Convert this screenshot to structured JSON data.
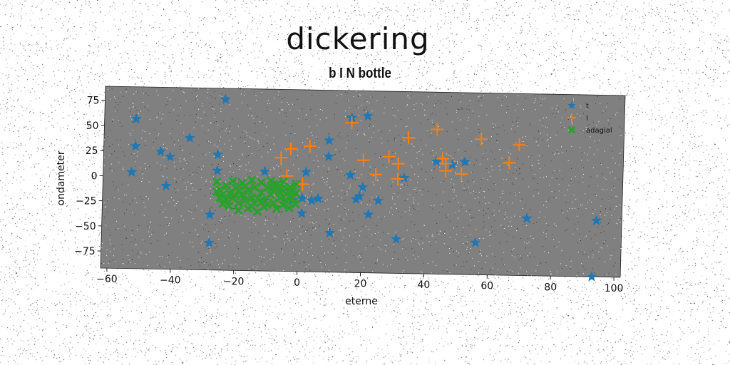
{
  "title": "dickering",
  "subtitle": "b I N bottle",
  "chart_data": {
    "type": "scatter",
    "xlabel": "eterne",
    "ylabel": "ondameter",
    "xlim": [
      -62,
      102
    ],
    "ylim": [
      -92,
      89
    ],
    "xticks": [
      -60,
      -40,
      -20,
      0,
      20,
      40,
      60,
      80,
      100
    ],
    "yticks": [
      -75,
      -50,
      -25,
      0,
      25,
      50,
      75
    ],
    "xtick_labels": [
      "−60",
      "−40",
      "−20",
      "0",
      "20",
      "40",
      "60",
      "80",
      "100"
    ],
    "ytick_labels": [
      "−75",
      "−50",
      "−25",
      "0",
      "25",
      "50",
      "75"
    ],
    "background": "#808080",
    "grid": false,
    "legend_position": "top-right",
    "series": [
      {
        "name": "t",
        "marker": "star",
        "color": "#1f77b4",
        "points": [
          [
            -24,
            78
          ],
          [
            -52,
            57
          ],
          [
            -52,
            30
          ],
          [
            -53,
            4
          ],
          [
            -44,
            25
          ],
          [
            -41,
            20
          ],
          [
            -42,
            -9
          ],
          [
            -35,
            39
          ],
          [
            -26,
            23
          ],
          [
            -26,
            7
          ],
          [
            -28,
            -37
          ],
          [
            -28,
            -65
          ],
          [
            -11,
            7
          ],
          [
            -11,
            -22
          ],
          [
            -2,
            -21
          ],
          [
            2,
            7
          ],
          [
            1,
            -19
          ],
          [
            4,
            -21
          ],
          [
            1,
            -34
          ],
          [
            6,
            -19
          ],
          [
            9,
            39
          ],
          [
            9,
            23
          ],
          [
            10,
            -53
          ],
          [
            16,
            62
          ],
          [
            21,
            64
          ],
          [
            19,
            -16
          ],
          [
            18,
            -19
          ],
          [
            22,
            -34
          ],
          [
            25,
            -20
          ],
          [
            20,
            -7
          ],
          [
            16,
            5
          ],
          [
            31,
            -58
          ],
          [
            33,
            3
          ],
          [
            43,
            20
          ],
          [
            52,
            20
          ],
          [
            48,
            17
          ],
          [
            56,
            -60
          ],
          [
            72,
            -35
          ],
          [
            94,
            -36
          ],
          [
            93,
            -92
          ]
        ]
      },
      {
        "name": "l",
        "marker": "plus",
        "color": "#ff7f0e",
        "points": [
          [
            -6,
            21
          ],
          [
            -3,
            30
          ],
          [
            3,
            33
          ],
          [
            -4,
            3
          ],
          [
            1,
            -5
          ],
          [
            16,
            57
          ],
          [
            20,
            20
          ],
          [
            24,
            6
          ],
          [
            28,
            24
          ],
          [
            31,
            17
          ],
          [
            31,
            2
          ],
          [
            34,
            43
          ],
          [
            43,
            52
          ],
          [
            45,
            23
          ],
          [
            46,
            18
          ],
          [
            46,
            11
          ],
          [
            51,
            8
          ],
          [
            57,
            43
          ],
          [
            66,
            20
          ],
          [
            69,
            38
          ]
        ]
      },
      {
        "name": "adagial",
        "marker": "x",
        "color": "#2ca02c",
        "points": [
          [
            -26,
            -4
          ],
          [
            -25,
            -12
          ],
          [
            -25,
            -20
          ],
          [
            -24,
            -26
          ],
          [
            -23,
            -8
          ],
          [
            -22,
            -15
          ],
          [
            -22,
            -28
          ],
          [
            -21,
            -3
          ],
          [
            -21,
            -20
          ],
          [
            -20,
            -10
          ],
          [
            -19,
            -25
          ],
          [
            -19,
            -32
          ],
          [
            -18,
            -5
          ],
          [
            -18,
            -16
          ],
          [
            -17,
            -22
          ],
          [
            -16,
            -12
          ],
          [
            -16,
            -30
          ],
          [
            -15,
            -2
          ],
          [
            -15,
            -19
          ],
          [
            -14,
            -9
          ],
          [
            -14,
            -25
          ],
          [
            -13,
            -33
          ],
          [
            -12,
            -14
          ],
          [
            -12,
            -4
          ],
          [
            -11,
            -21
          ],
          [
            -11,
            -28
          ],
          [
            -10,
            -9
          ],
          [
            -9,
            -16
          ],
          [
            -9,
            -2
          ],
          [
            -8,
            -24
          ],
          [
            -8,
            -12
          ],
          [
            -7,
            -30
          ],
          [
            -7,
            -6
          ],
          [
            -6,
            -19
          ],
          [
            -6,
            -10
          ],
          [
            -5,
            -26
          ],
          [
            -5,
            -3
          ],
          [
            -4,
            -15
          ],
          [
            -4,
            -22
          ],
          [
            -3,
            -8
          ],
          [
            -3,
            -29
          ],
          [
            -2,
            -12
          ],
          [
            -2,
            -19
          ],
          [
            -1,
            -25
          ],
          [
            -1,
            -5
          ],
          [
            -24,
            -16
          ],
          [
            -20,
            -18
          ],
          [
            -17,
            -8
          ],
          [
            -13,
            -20
          ],
          [
            -10,
            -26
          ],
          [
            -6,
            -14
          ],
          [
            -3,
            -17
          ],
          [
            -26,
            -14
          ],
          [
            -23,
            -22
          ],
          [
            -15,
            -28
          ],
          [
            -8,
            -6
          ],
          [
            -4,
            -10
          ],
          [
            -1,
            -14
          ],
          [
            -19,
            -12
          ],
          [
            -12,
            -24
          ]
        ]
      }
    ]
  }
}
